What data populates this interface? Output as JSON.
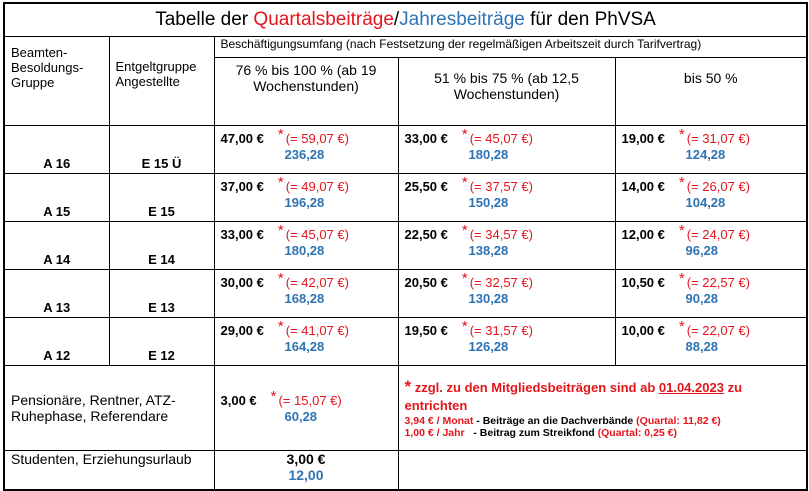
{
  "title": [
    "Tabelle der ",
    "Quartalsbeiträge",
    "/",
    "Jahresbeiträge",
    " für den PhVSA"
  ],
  "header": {
    "grade": "Beamten-Besoldungs-Gruppe",
    "group": "Entgeltgruppe Angestellte",
    "scope": "Beschäftigungsumfang (nach Festsetzung der regelmäßigen Arbeitszeit durch Tarifvertrag)",
    "ranges": [
      "76 % bis 100 % (ab 19 Wochenstunden)",
      "51 % bis 75 % (ab 12,5 Wochenstunden)",
      "bis 50 %"
    ]
  },
  "rows": [
    {
      "grade": "A 16",
      "group": "E 15 Ü",
      "cells": [
        {
          "quarter": "47,00 €",
          "star": "*",
          "incl": "(= 59,07 €)",
          "year": "236,28"
        },
        {
          "quarter": "33,00 €",
          "star": "*",
          "incl": "(= 45,07 €)",
          "year": "180,28"
        },
        {
          "quarter": "19,00 €",
          "star": "*",
          "incl": "(= 31,07 €)",
          "year": "124,28"
        }
      ]
    },
    {
      "grade": "A 15",
      "group": "E 15",
      "cells": [
        {
          "quarter": "37,00 €",
          "star": "*",
          "incl": "(= 49,07 €)",
          "year": "196,28"
        },
        {
          "quarter": "25,50 €",
          "star": "*",
          "incl": "(= 37,57 €)",
          "year": "150,28"
        },
        {
          "quarter": "14,00 €",
          "star": "*",
          "incl": "(= 26,07 €)",
          "year": "104,28"
        }
      ]
    },
    {
      "grade": "A 14",
      "group": "E 14",
      "cells": [
        {
          "quarter": "33,00 €",
          "star": "*",
          "incl": "(= 45,07 €)",
          "year": "180,28"
        },
        {
          "quarter": "22,50 €",
          "star": "*",
          "incl": "(= 34,57 €)",
          "year": "138,28"
        },
        {
          "quarter": "12,00 €",
          "star": "*",
          "incl": "(= 24,07 €)",
          "year": "96,28"
        }
      ]
    },
    {
      "grade": "A 13",
      "group": "E 13",
      "cells": [
        {
          "quarter": "30,00 €",
          "star": "*",
          "incl": "(= 42,07 €)",
          "year": "168,28"
        },
        {
          "quarter": "20,50 €",
          "star": "*",
          "incl": "(= 32,57 €)",
          "year": "130,28"
        },
        {
          "quarter": "10,50 €",
          "star": "*",
          "incl": "(= 22,57 €)",
          "year": "90,28"
        }
      ]
    },
    {
      "grade": "A 12",
      "group": "E 12",
      "cells": [
        {
          "quarter": "29,00 €",
          "star": "*",
          "incl": "(= 41,07 €)",
          "year": "164,28"
        },
        {
          "quarter": "19,50 €",
          "star": "*",
          "incl": "(= 31,57 €)",
          "year": "126,28"
        },
        {
          "quarter": "10,00 €",
          "star": "*",
          "incl": "(= 22,07 €)",
          "year": "88,28"
        }
      ]
    }
  ],
  "pension": {
    "label": "Pensionäre, Rentner, ATZ-Ruhephase, Referendare",
    "cell": {
      "quarter": "3,00 €",
      "star": "*",
      "incl": "(= 15,07 €)",
      "year": "60,28"
    }
  },
  "note": {
    "star": "*",
    "text1": " zzgl. zu den Mitgliedsbeiträgen sind ab ",
    "date": "01.04.2023",
    "text2": " zu entrichten",
    "line2": [
      "3,94 € / Monat",
      " - Beiträge an die Dachverbände ",
      "(Quartal: 11,82 €)"
    ],
    "line3": [
      "1,00 € / Jahr",
      "   - Beitrag zum Streikfond ",
      "(Quartal: 0,25 €)"
    ]
  },
  "students": {
    "label": "Studenten, Erziehungsurlaub",
    "quarter": "3,00 €",
    "year": "12,00"
  }
}
